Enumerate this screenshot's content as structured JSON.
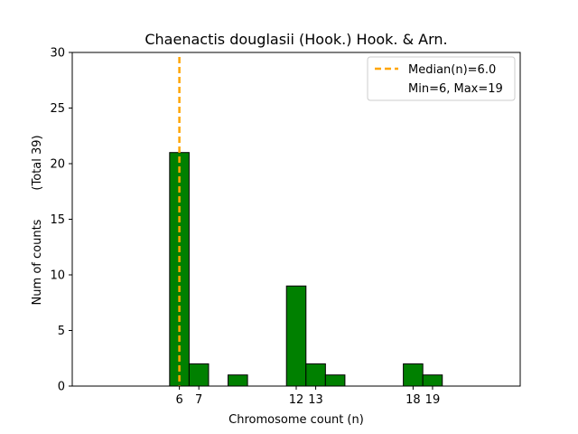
{
  "chart_data": {
    "type": "bar",
    "title": "Chaenactis douglasii (Hook.) Hook. & Arn.",
    "xlabel": "Chromosome count (n)",
    "ylabel": "Num of counts",
    "ylabel_total": "(Total 39)",
    "ylim": [
      0,
      30
    ],
    "xlim": [
      0.5,
      23.5
    ],
    "yticks": [
      0,
      5,
      10,
      15,
      20,
      25,
      30
    ],
    "xticks": [
      6,
      7,
      12,
      13,
      18,
      19
    ],
    "bars": [
      {
        "x": 6,
        "value": 21
      },
      {
        "x": 7,
        "value": 2
      },
      {
        "x": 9,
        "value": 1
      },
      {
        "x": 12,
        "value": 9
      },
      {
        "x": 13,
        "value": 2
      },
      {
        "x": 14,
        "value": 1
      },
      {
        "x": 18,
        "value": 2
      },
      {
        "x": 19,
        "value": 1
      }
    ],
    "median_line": {
      "x": 6.0,
      "label": "Median(n)=6.0"
    },
    "legend": {
      "position": "top-right",
      "extra_text": "Min=6, Max=19"
    },
    "colors": {
      "bar": "#008000",
      "bar_edge": "#000000",
      "median": "#FFA500"
    },
    "grid": false
  }
}
